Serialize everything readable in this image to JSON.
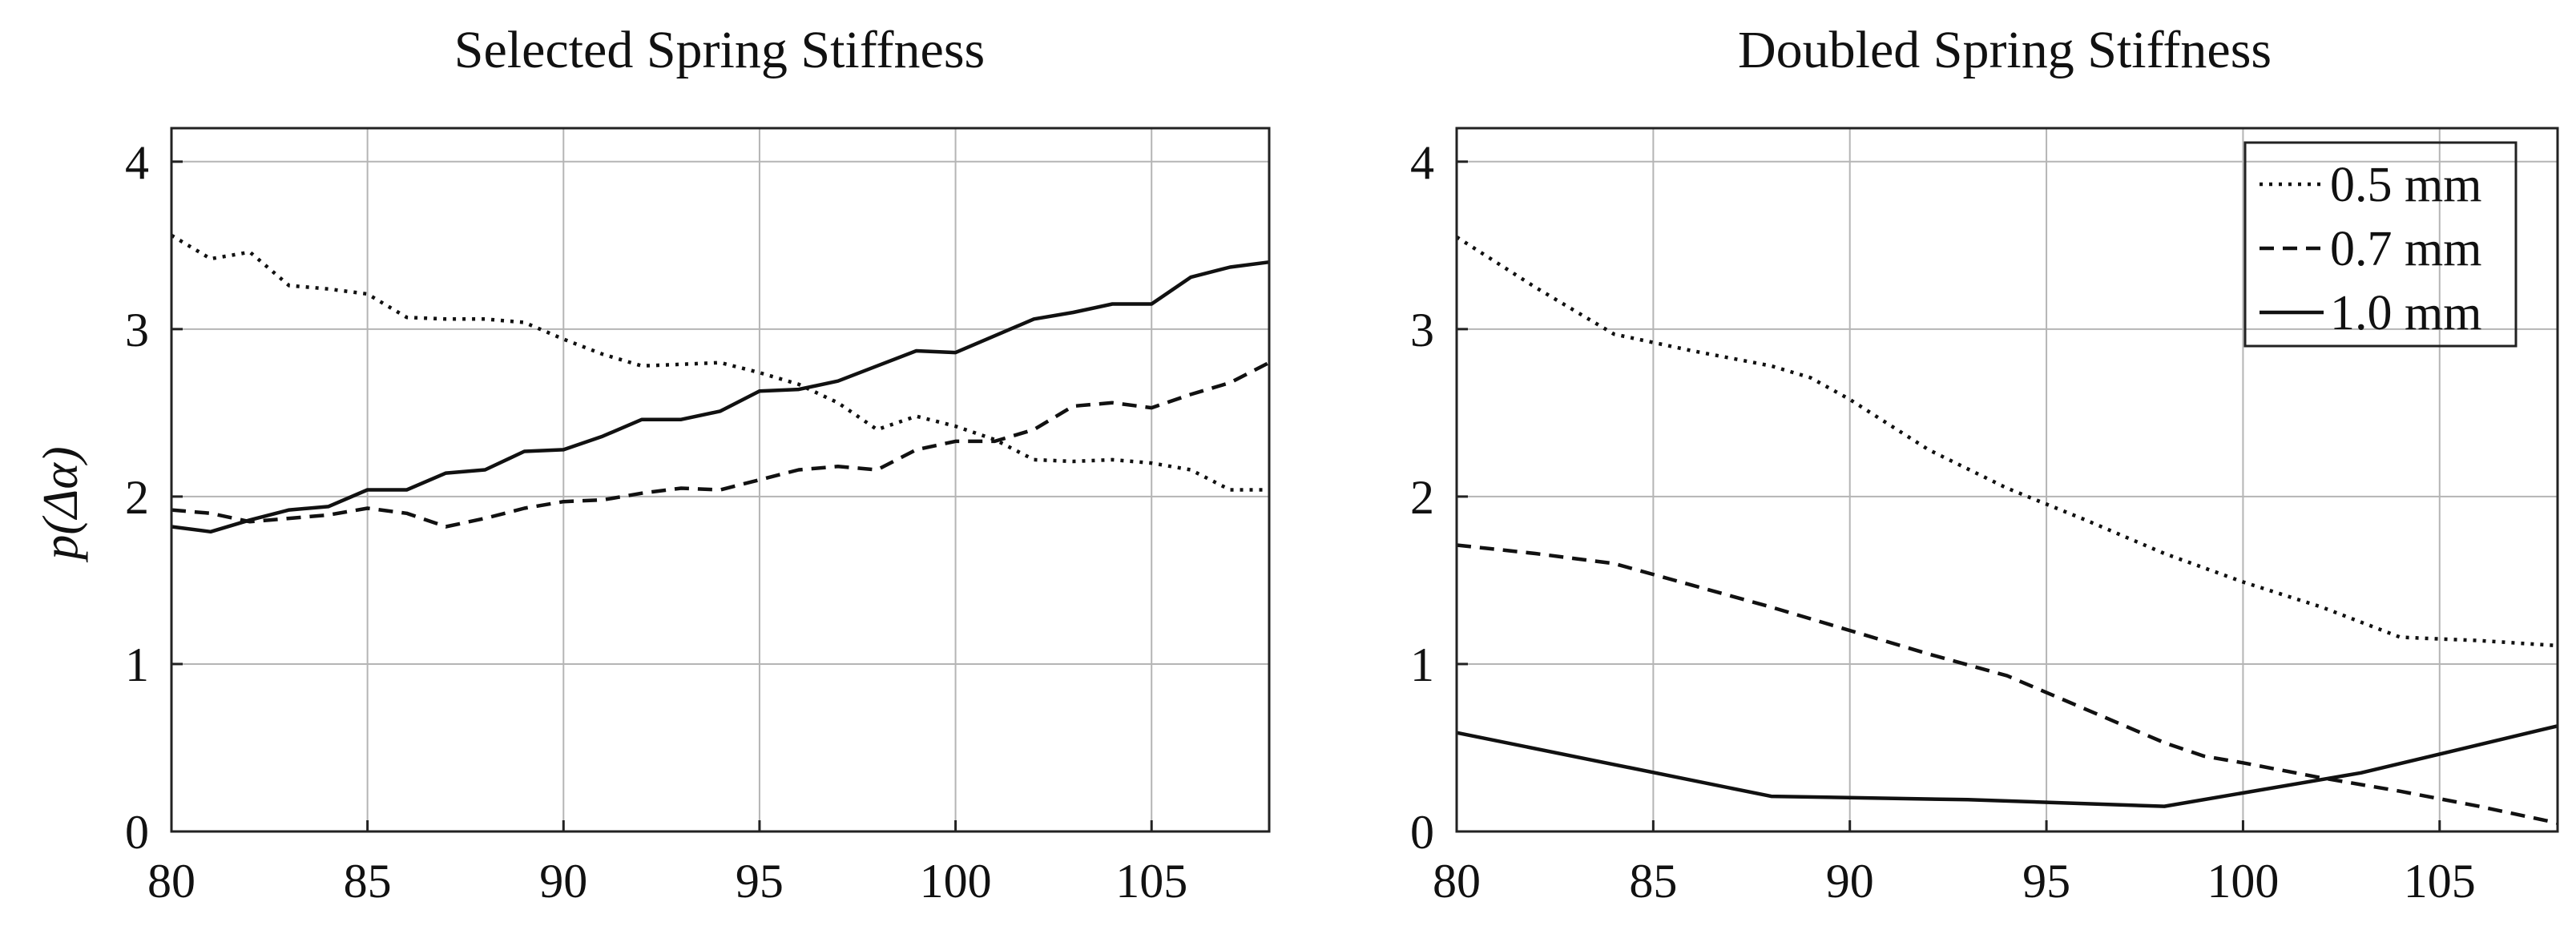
{
  "chart_data": [
    {
      "type": "line",
      "title": "Selected Spring Stiffness",
      "xlabel": "",
      "ylabel": "p(Δα)",
      "xlim": [
        80,
        108
      ],
      "ylim": [
        0,
        4.2
      ],
      "xticks": [
        80,
        85,
        90,
        95,
        100,
        105
      ],
      "yticks": [
        0,
        1,
        2,
        3,
        4
      ],
      "grid": true,
      "series": [
        {
          "name": "0.5 mm",
          "style": "dotted",
          "x": [
            80,
            81,
            82,
            83,
            84,
            85,
            86,
            87,
            88,
            89,
            90,
            91,
            92,
            93,
            94,
            95,
            96,
            97,
            98,
            99,
            100,
            101,
            102,
            103,
            104,
            105,
            106,
            107,
            108
          ],
          "y": [
            3.56,
            3.42,
            3.46,
            3.26,
            3.24,
            3.21,
            3.07,
            3.06,
            3.06,
            3.04,
            2.94,
            2.85,
            2.78,
            2.79,
            2.8,
            2.74,
            2.67,
            2.56,
            2.4,
            2.48,
            2.42,
            2.34,
            2.22,
            2.21,
            2.22,
            2.2,
            2.16,
            2.04,
            2.04
          ]
        },
        {
          "name": "0.7 mm",
          "style": "dashed",
          "x": [
            80,
            81,
            82,
            83,
            84,
            85,
            86,
            87,
            88,
            89,
            90,
            91,
            92,
            93,
            94,
            95,
            96,
            97,
            98,
            99,
            100,
            101,
            102,
            103,
            104,
            105,
            106,
            107,
            108
          ],
          "y": [
            1.92,
            1.9,
            1.85,
            1.87,
            1.89,
            1.93,
            1.9,
            1.82,
            1.87,
            1.93,
            1.97,
            1.98,
            2.02,
            2.05,
            2.04,
            2.1,
            2.16,
            2.18,
            2.16,
            2.28,
            2.33,
            2.33,
            2.4,
            2.54,
            2.56,
            2.53,
            2.61,
            2.68,
            2.8
          ]
        },
        {
          "name": "1.0 mm",
          "style": "solid",
          "x": [
            80,
            81,
            82,
            83,
            84,
            85,
            86,
            87,
            88,
            89,
            90,
            91,
            92,
            93,
            94,
            95,
            96,
            97,
            98,
            99,
            100,
            101,
            102,
            103,
            104,
            105,
            106,
            107,
            108
          ],
          "y": [
            1.82,
            1.79,
            1.86,
            1.92,
            1.94,
            2.04,
            2.04,
            2.14,
            2.16,
            2.27,
            2.28,
            2.36,
            2.46,
            2.46,
            2.51,
            2.63,
            2.64,
            2.69,
            2.78,
            2.87,
            2.86,
            2.96,
            3.06,
            3.1,
            3.15,
            3.15,
            3.31,
            3.37,
            3.4
          ]
        }
      ]
    },
    {
      "type": "line",
      "title": "Doubled Spring Stiffness",
      "xlabel": "",
      "ylabel": "",
      "xlim": [
        80,
        108
      ],
      "ylim": [
        0,
        4.2
      ],
      "xticks": [
        80,
        85,
        90,
        95,
        100,
        105
      ],
      "yticks": [
        0,
        1,
        2,
        3,
        4
      ],
      "grid": true,
      "legend": "top-right",
      "series": [
        {
          "name": "0.5 mm",
          "style": "dotted",
          "x": [
            80,
            82,
            84,
            86,
            88,
            89,
            90,
            92,
            94,
            96,
            98,
            100,
            102,
            104,
            106,
            108
          ],
          "y": [
            3.55,
            3.25,
            2.97,
            2.87,
            2.78,
            2.71,
            2.58,
            2.28,
            2.05,
            1.86,
            1.66,
            1.49,
            1.34,
            1.16,
            1.14,
            1.11
          ]
        },
        {
          "name": "0.7 mm",
          "style": "dashed",
          "x": [
            80,
            82,
            84,
            86,
            88,
            90,
            92,
            94,
            96,
            98,
            99,
            100,
            102,
            104,
            106,
            108
          ],
          "y": [
            1.71,
            1.66,
            1.6,
            1.47,
            1.34,
            1.2,
            1.06,
            0.93,
            0.73,
            0.53,
            0.45,
            0.41,
            0.32,
            0.24,
            0.15,
            0.05
          ]
        },
        {
          "name": "1.0 mm",
          "style": "solid",
          "x": [
            80,
            84,
            88,
            93,
            98,
            103,
            108
          ],
          "y": [
            0.59,
            0.4,
            0.21,
            0.19,
            0.15,
            0.35,
            0.63
          ]
        }
      ]
    }
  ]
}
